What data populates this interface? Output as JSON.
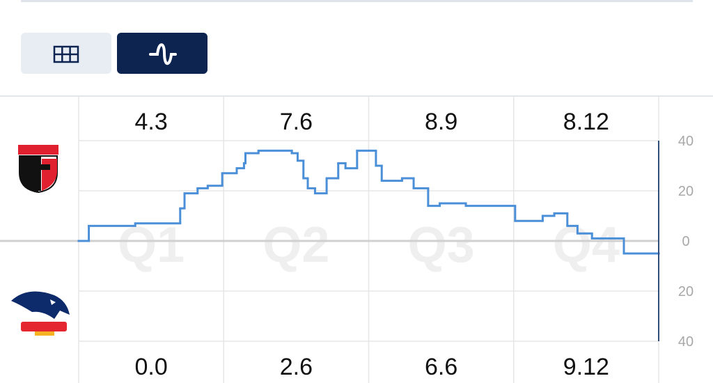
{
  "chart_data": {
    "type": "step",
    "categories": [
      "Q1",
      "Q2",
      "Q3",
      "Q4"
    ],
    "top_scores": [
      "4.3",
      "7.6",
      "8.9",
      "8.12"
    ],
    "bottom_scores": [
      "0.0",
      "2.6",
      "6.6",
      "9.12"
    ],
    "xlim": [
      0,
      4
    ],
    "x": [
      0,
      0.07,
      0.39,
      0.7,
      0.73,
      0.82,
      0.89,
      0.99,
      1.09,
      1.14,
      1.15,
      1.24,
      1.47,
      1.51,
      1.55,
      1.58,
      1.63,
      1.71,
      1.79,
      1.84,
      1.92,
      2.05,
      2.09,
      2.23,
      2.31,
      2.41,
      2.49,
      2.67,
      3.01,
      3.2,
      3.28,
      3.37,
      3.44,
      3.54,
      3.76,
      3.9
    ],
    "values": [
      0,
      6,
      7,
      13,
      19,
      21,
      22,
      27,
      29,
      31,
      35,
      36,
      35,
      32,
      25,
      21,
      19,
      25,
      31,
      29,
      36,
      30,
      24,
      25,
      21,
      14,
      15,
      14,
      8,
      10,
      11,
      6,
      3,
      1,
      -5,
      -5
    ],
    "color": "#4a8fd8",
    "ylim": [
      -40,
      40
    ],
    "yticks": [
      40,
      20,
      0,
      {
        "value": -20,
        "label": "20"
      },
      {
        "value": -40,
        "label": "40"
      }
    ],
    "grid": true
  }
}
